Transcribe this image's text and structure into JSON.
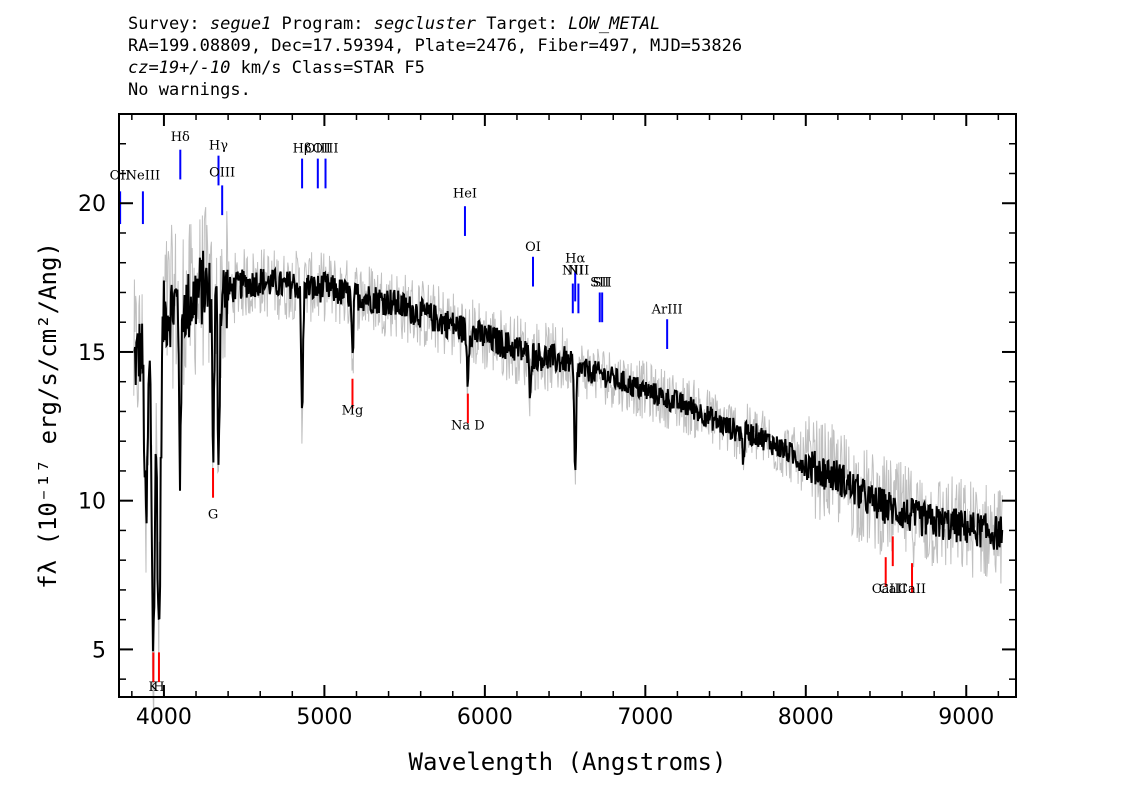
{
  "header": {
    "line1": [
      {
        "text": "Survey: ",
        "italic": false
      },
      {
        "text": "segue1",
        "italic": true
      },
      {
        "text": " Program: ",
        "italic": false
      },
      {
        "text": "segcluster",
        "italic": true
      },
      {
        "text": " Target: ",
        "italic": false
      },
      {
        "text": "LOW_METAL",
        "italic": true
      }
    ],
    "line2": "RA=199.08809, Dec=17.59394, Plate=2476, Fiber=497, MJD=53826",
    "line3": [
      {
        "text": "cz=19+/-10",
        "italic": true
      },
      {
        "text": " km/s Class=STAR F5",
        "italic": false
      }
    ],
    "line4": "No warnings."
  },
  "chart_data": {
    "type": "line",
    "xlabel": "Wavelength (Angstroms)",
    "ylabel": "fλ (10⁻¹⁷ erg/s/cm²/Ang)",
    "xlim": [
      3720,
      9310
    ],
    "ylim": [
      3.4,
      23.0
    ],
    "x_ticks": [
      4000,
      5000,
      6000,
      7000,
      8000,
      9000
    ],
    "y_ticks": [
      5,
      10,
      15,
      20
    ],
    "series": [
      {
        "role": "flux",
        "color": "#000000",
        "x": [
          3800,
          3850,
          3900,
          3950,
          4000,
          4050,
          4100,
          4150,
          4200,
          4250,
          4300,
          4350,
          4400,
          4450,
          4500,
          4550,
          4600,
          4650,
          4700,
          4750,
          4800,
          4850,
          4900,
          4950,
          5000,
          5100,
          5200,
          5300,
          5400,
          5500,
          5600,
          5700,
          5800,
          5900,
          6000,
          6100,
          6200,
          6300,
          6400,
          6500,
          6550,
          6600,
          6700,
          6800,
          6900,
          7000,
          7100,
          7200,
          7300,
          7400,
          7500,
          7600,
          7700,
          7800,
          7900,
          8000,
          8100,
          8200,
          8300,
          8400,
          8500,
          8600,
          8700,
          8800,
          8900,
          9000,
          9100,
          9200
        ],
        "y": [
          14.5,
          15.0,
          15.5,
          15.8,
          16.2,
          16.5,
          16.8,
          16.5,
          16.9,
          17.2,
          16.8,
          16.9,
          17.0,
          17.2,
          17.3,
          17.3,
          17.4,
          17.3,
          17.3,
          17.2,
          17.3,
          17.2,
          17.2,
          17.1,
          17.2,
          17.0,
          16.9,
          16.8,
          16.7,
          16.5,
          16.3,
          16.1,
          15.9,
          15.7,
          15.5,
          15.3,
          15.1,
          14.9,
          14.8,
          14.7,
          14.6,
          14.4,
          14.3,
          14.1,
          13.9,
          13.7,
          13.5,
          13.3,
          13.1,
          12.8,
          12.5,
          12.3,
          12.2,
          11.9,
          11.6,
          11.2,
          11.0,
          10.8,
          10.4,
          10.0,
          9.8,
          9.6,
          9.4,
          9.3,
          9.2,
          9.1,
          9.0,
          8.9
        ],
        "absorption": [
          {
            "x": 3934,
            "y": 5.4
          },
          {
            "x": 3969,
            "y": 5.6
          },
          {
            "x": 3889,
            "y": 9.1
          },
          {
            "x": 4102,
            "y": 11.0
          },
          {
            "x": 4308,
            "y": 12.0
          },
          {
            "x": 4341,
            "y": 11.8
          },
          {
            "x": 4861,
            "y": 13.0
          },
          {
            "x": 5175,
            "y": 14.8
          },
          {
            "x": 5893,
            "y": 14.2
          },
          {
            "x": 6563,
            "y": 10.7
          },
          {
            "x": 6280,
            "y": 13.9
          },
          {
            "x": 7610,
            "y": 11.5
          }
        ]
      },
      {
        "role": "error envelope",
        "color": "#c0c0c0"
      }
    ],
    "emission_lines": [
      {
        "label": "OII",
        "x": 3727,
        "label_y": 20.8,
        "bar": [
          19.3,
          20.4
        ]
      },
      {
        "label": "NeIII",
        "x": 3869,
        "label_y": 20.8,
        "bar": [
          19.3,
          20.4
        ]
      },
      {
        "label": "Hδ",
        "x": 4102,
        "label_y": 22.1,
        "bar": [
          20.8,
          21.8
        ]
      },
      {
        "label": "Hγ",
        "x": 4340,
        "label_y": 21.8,
        "bar": [
          20.6,
          21.6
        ]
      },
      {
        "label": "OIII",
        "x": 4363,
        "label_y": 20.9,
        "bar": [
          19.6,
          20.6
        ]
      },
      {
        "label": "Hβ",
        "x": 4861,
        "label_y": 21.7,
        "bar": [
          20.5,
          21.5
        ]
      },
      {
        "label": "OIII",
        "x": 4959,
        "label_y": 21.7,
        "bar": [
          20.5,
          21.5
        ]
      },
      {
        "label": "OIII",
        "x": 5007,
        "label_y": 21.7,
        "bar": [
          20.5,
          21.5
        ]
      },
      {
        "label": "HeI",
        "x": 5876,
        "label_y": 20.2,
        "bar": [
          18.9,
          19.9
        ]
      },
      {
        "label": "OI",
        "x": 6300,
        "label_y": 18.4,
        "bar": [
          17.2,
          18.2
        ]
      },
      {
        "label": "NII",
        "x": 6548,
        "label_y": 17.6,
        "bar": [
          16.3,
          17.3
        ]
      },
      {
        "label": "Hα",
        "x": 6563,
        "label_y": 18.0,
        "bar": [
          16.7,
          17.7
        ]
      },
      {
        "label": "NII",
        "x": 6583,
        "label_y": 17.6,
        "bar": [
          16.3,
          17.3
        ]
      },
      {
        "label": "SII",
        "x": 6716,
        "label_y": 17.2,
        "bar": [
          16.0,
          17.0
        ]
      },
      {
        "label": "SII",
        "x": 6731,
        "label_y": 17.2,
        "bar": [
          16.0,
          17.0
        ]
      },
      {
        "label": "ArIII",
        "x": 7136,
        "label_y": 16.3,
        "bar": [
          15.1,
          16.1
        ]
      }
    ],
    "absorption_lines": [
      {
        "label": "K",
        "x": 3934,
        "label_y": 3.6,
        "bar": [
          3.9,
          4.9
        ]
      },
      {
        "label": "H",
        "x": 3969,
        "label_y": 3.6,
        "bar": [
          3.9,
          4.9
        ]
      },
      {
        "label": "G",
        "x": 4306,
        "label_y": 9.4,
        "bar": [
          10.1,
          11.1
        ]
      },
      {
        "label": "Mg",
        "x": 5175,
        "label_y": 12.9,
        "bar": [
          13.1,
          14.1
        ]
      },
      {
        "label": "Na D",
        "x": 5894,
        "label_y": 12.4,
        "bar": [
          12.6,
          13.6
        ]
      },
      {
        "label": "CaII",
        "x": 8498,
        "label_y": 6.9,
        "bar": [
          7.1,
          8.1
        ]
      },
      {
        "label": "CaII",
        "x": 8542,
        "label_y": 6.9,
        "bar": [
          7.8,
          8.8
        ]
      },
      {
        "label": "CaII",
        "x": 8662,
        "label_y": 6.9,
        "bar": [
          6.9,
          7.9
        ]
      }
    ],
    "colors": {
      "emission": "#0000ff",
      "absorption": "#ff0000",
      "flux": "#000000",
      "error": "#c0c0c0"
    }
  }
}
